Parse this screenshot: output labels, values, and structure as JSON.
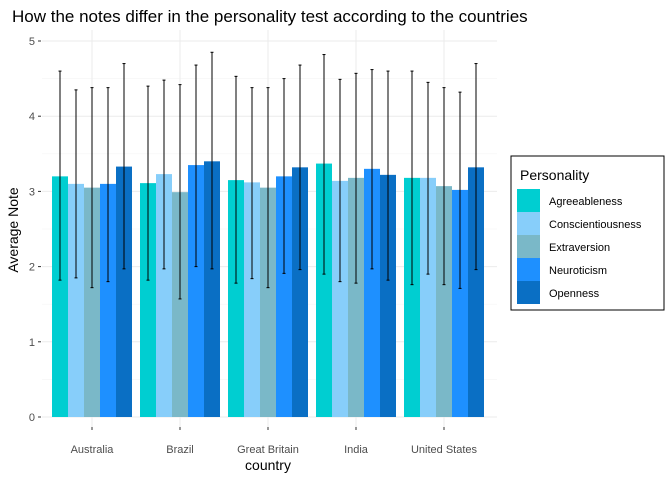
{
  "chart_data": {
    "type": "bar",
    "title": "How the notes differ in the personality test according to the countries",
    "xlabel": "country",
    "ylabel": "Average Note",
    "ylim": [
      0,
      5
    ],
    "yticks": [
      "0",
      "1",
      "2",
      "3",
      "4",
      "5"
    ],
    "grid": true,
    "legend": {
      "title": "Personality",
      "placement": "right"
    },
    "categories": [
      "Australia",
      "Brazil",
      "Great Britain",
      "India",
      "United States"
    ],
    "series": [
      {
        "name": "Agreeableness",
        "color": "#00CED1",
        "values": [
          3.2,
          3.11,
          3.15,
          3.37,
          3.18
        ],
        "error_low": [
          1.82,
          1.82,
          1.78,
          1.9,
          1.76
        ],
        "error_high": [
          4.6,
          4.4,
          4.53,
          4.82,
          4.6
        ]
      },
      {
        "name": "Conscientiousness",
        "color": "#87CEFA",
        "values": [
          3.1,
          3.23,
          3.12,
          3.14,
          3.18
        ],
        "error_low": [
          1.85,
          1.97,
          1.84,
          1.8,
          1.9
        ],
        "error_high": [
          4.35,
          4.48,
          4.38,
          4.49,
          4.45
        ]
      },
      {
        "name": "Extraversion",
        "color": "#7AB8C8",
        "values": [
          3.05,
          2.99,
          3.05,
          3.18,
          3.07
        ],
        "error_low": [
          1.72,
          1.57,
          1.72,
          1.78,
          1.76
        ],
        "error_high": [
          4.38,
          4.42,
          4.38,
          4.57,
          4.38
        ]
      },
      {
        "name": "Neuroticism",
        "color": "#1E90FF",
        "values": [
          3.1,
          3.35,
          3.2,
          3.3,
          3.02
        ],
        "error_low": [
          1.8,
          2.0,
          1.91,
          1.97,
          1.71
        ],
        "error_high": [
          4.38,
          4.68,
          4.5,
          4.62,
          4.32
        ]
      },
      {
        "name": "Openness",
        "color": "#0A6FC4",
        "values": [
          3.33,
          3.4,
          3.32,
          3.22,
          3.32
        ],
        "error_low": [
          1.97,
          1.97,
          1.96,
          1.82,
          1.96
        ],
        "error_high": [
          4.7,
          4.85,
          4.68,
          4.6,
          4.7
        ]
      }
    ]
  }
}
